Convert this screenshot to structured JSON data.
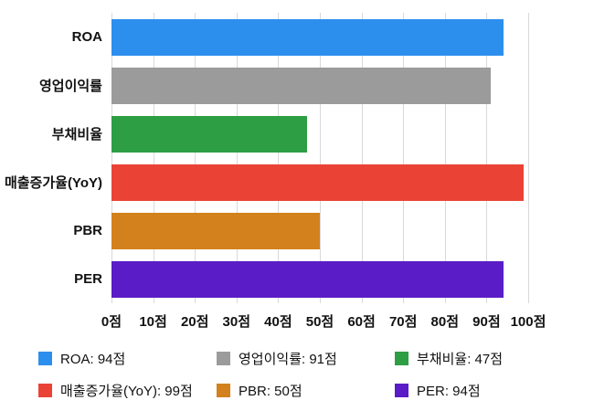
{
  "chart_data": {
    "type": "bar",
    "orientation": "horizontal",
    "unit": "점",
    "categories": [
      "ROA",
      "영업이익률",
      "부채비율",
      "매출증가율(YoY)",
      "PBR",
      "PER"
    ],
    "values": [
      94,
      91,
      47,
      99,
      50,
      94
    ],
    "colors": [
      "#2d8fed",
      "#9b9b9b",
      "#2d9e44",
      "#ea4335",
      "#d2811c",
      "#5a1cc6"
    ],
    "xlim": [
      0,
      100
    ],
    "x_tick_labels": [
      "0점",
      "10점",
      "20점",
      "30점",
      "40점",
      "50점",
      "60점",
      "70점",
      "80점",
      "90점",
      "100점"
    ],
    "grid": true,
    "legend_position": "bottom",
    "legend": [
      {
        "label": "ROA: 94점",
        "color": "#2d8fed"
      },
      {
        "label": "영업이익률: 91점",
        "color": "#9b9b9b"
      },
      {
        "label": "부채비율: 47점",
        "color": "#2d9e44"
      },
      {
        "label": "매출증가율(YoY): 99점",
        "color": "#ea4335"
      },
      {
        "label": "PBR: 50점",
        "color": "#d2811c"
      },
      {
        "label": "PER: 94점",
        "color": "#5a1cc6"
      }
    ]
  }
}
